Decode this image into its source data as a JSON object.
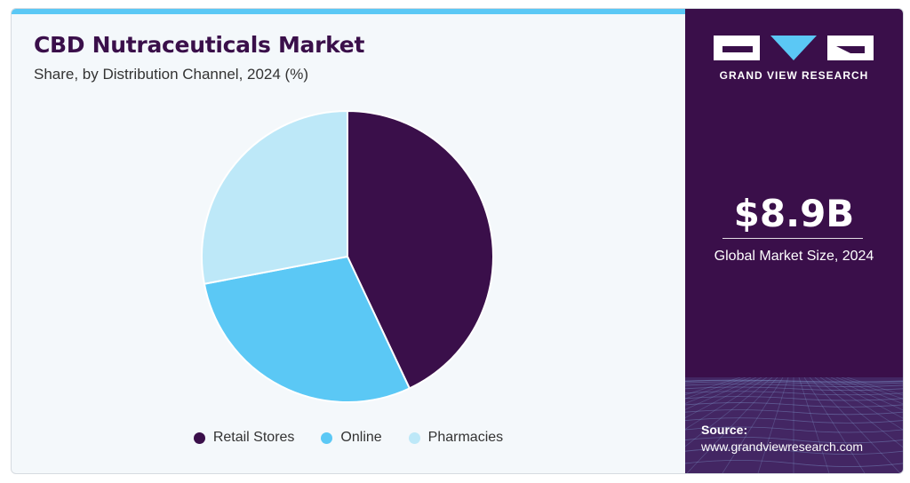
{
  "header": {
    "title": "CBD Nutraceuticals Market",
    "subtitle": "Share, by Distribution Channel, 2024 (%)"
  },
  "chart_data": {
    "type": "pie",
    "title": "CBD Nutraceuticals Market",
    "subtitle": "Share, by Distribution Channel, 2024 (%)",
    "categories": [
      "Retail Stores",
      "Online",
      "Pharmacies"
    ],
    "values": [
      43,
      29,
      28
    ],
    "colors": [
      "#3a0f4a",
      "#5bc8f5",
      "#bde8f8"
    ],
    "legend_position": "bottom",
    "start_angle_deg": 0,
    "direction": "clockwise"
  },
  "sidebar": {
    "brand": "GRAND VIEW RESEARCH",
    "market_size": "$8.9B",
    "market_size_caption": "Global Market Size, 2024",
    "source_label": "Source:",
    "source_url": "www.grandviewresearch.com",
    "background_color": "#3a0f4a"
  }
}
